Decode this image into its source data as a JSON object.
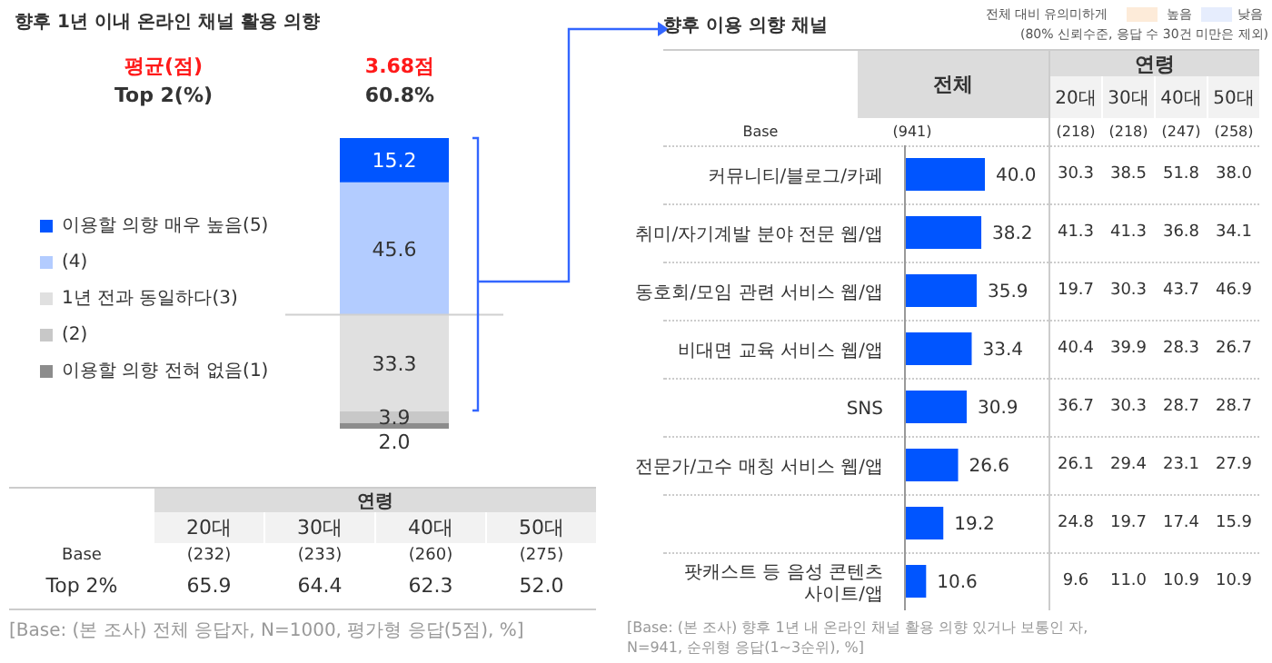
{
  "chart_data": [
    {
      "type": "bar",
      "title": "향후 1년 이내 온라인 채널 활용 의향",
      "stacked": true,
      "categories": [
        null
      ],
      "legend": "left",
      "ref_lines": [
        {
          "axis": "y",
          "value": 39.2,
          "color": "#d0d0d0"
        }
      ],
      "series": [
        {
          "name": "이용할 의향 전혀 없음(1)",
          "color": "#8c8c8c",
          "values": [
            2.0
          ],
          "value_labels": [
            "2.0"
          ]
        },
        {
          "name": "(2)",
          "color": "#c8c8c8",
          "values": [
            3.9
          ],
          "value_labels": [
            "3.9"
          ]
        },
        {
          "name": "1년 전과 동일하다(3)",
          "color": "#e0e0e0",
          "values": [
            33.3
          ],
          "value_labels": [
            "33.3"
          ]
        },
        {
          "name": "(4)",
          "color": "#b3ccff",
          "values": [
            45.6
          ],
          "value_labels": [
            "45.6"
          ]
        },
        {
          "name": "이용할 의향 매우 높음(5)",
          "color": "#0055ff",
          "values": [
            15.2
          ],
          "value_labels": [
            "15.2"
          ]
        }
      ],
      "annotations": [
        "평균(점)",
        "3.68점",
        "Top 2(%)",
        "60.8%",
        "연령",
        "20대",
        "30대",
        "40대",
        "50대",
        "Base",
        "(232)",
        "(233)",
        "(260)",
        "(275)",
        "Top 2%",
        "65.9",
        "64.4",
        "62.3",
        "52.0",
        "[Base: (본 조사) 전체 응답자, N=1000, 평가형 응답(5점), %]"
      ]
    },
    {
      "type": "bar",
      "orientation": "horizontal",
      "title": "향후 이용 의향 채널",
      "color": "#0055ff",
      "categories": [
        "커뮤니티/블로그/카페",
        "취미/자기계발 분야 전문 웹/앱",
        "동호회/모임 관련 서비스 웹/앱",
        "비대면 교육 서비스 웹/앱",
        "SNS",
        "전문가/고수 매칭 서비스 웹/앱",
        null,
        "팟캐스트 등 음성 콘텐츠 사이트/앱"
      ],
      "values": [
        40.0,
        38.2,
        35.9,
        33.4,
        30.9,
        26.6,
        19.2,
        10.6
      ],
      "value_labels": [
        "40.0",
        "38.2",
        "35.9",
        "33.4",
        "30.9",
        "26.6",
        "19.2",
        "10.6"
      ],
      "annotations": [
        "전체 대비 유의미하게",
        "높음",
        "낮음",
        "(80% 신뢰수준, 응답 수 30건 미만은 제외)",
        "전체",
        "연령",
        "20대",
        "30대",
        "40대",
        "50대",
        "Base",
        "(941)",
        "(218)",
        "(218)",
        "(247)",
        "(258)",
        "30.3",
        "38.5",
        "51.8",
        "38.0",
        "41.3",
        "41.3",
        "36.8",
        "34.1",
        "19.7",
        "30.3",
        "43.7",
        "46.9",
        "40.4",
        "39.9",
        "28.3",
        "26.7",
        "36.7",
        "30.3",
        "28.7",
        "28.7",
        "26.1",
        "29.4",
        "23.1",
        "27.9",
        "24.8",
        "19.7",
        "17.4",
        "15.9",
        "9.6",
        "11.0",
        "10.9",
        "10.9",
        "[Base: (본 조사) 향후 1년 내 온라인 채널 활용 의향 있거나 보통인 자, N=941, 순위형 응답(1~3순위), %]"
      ]
    }
  ]
}
